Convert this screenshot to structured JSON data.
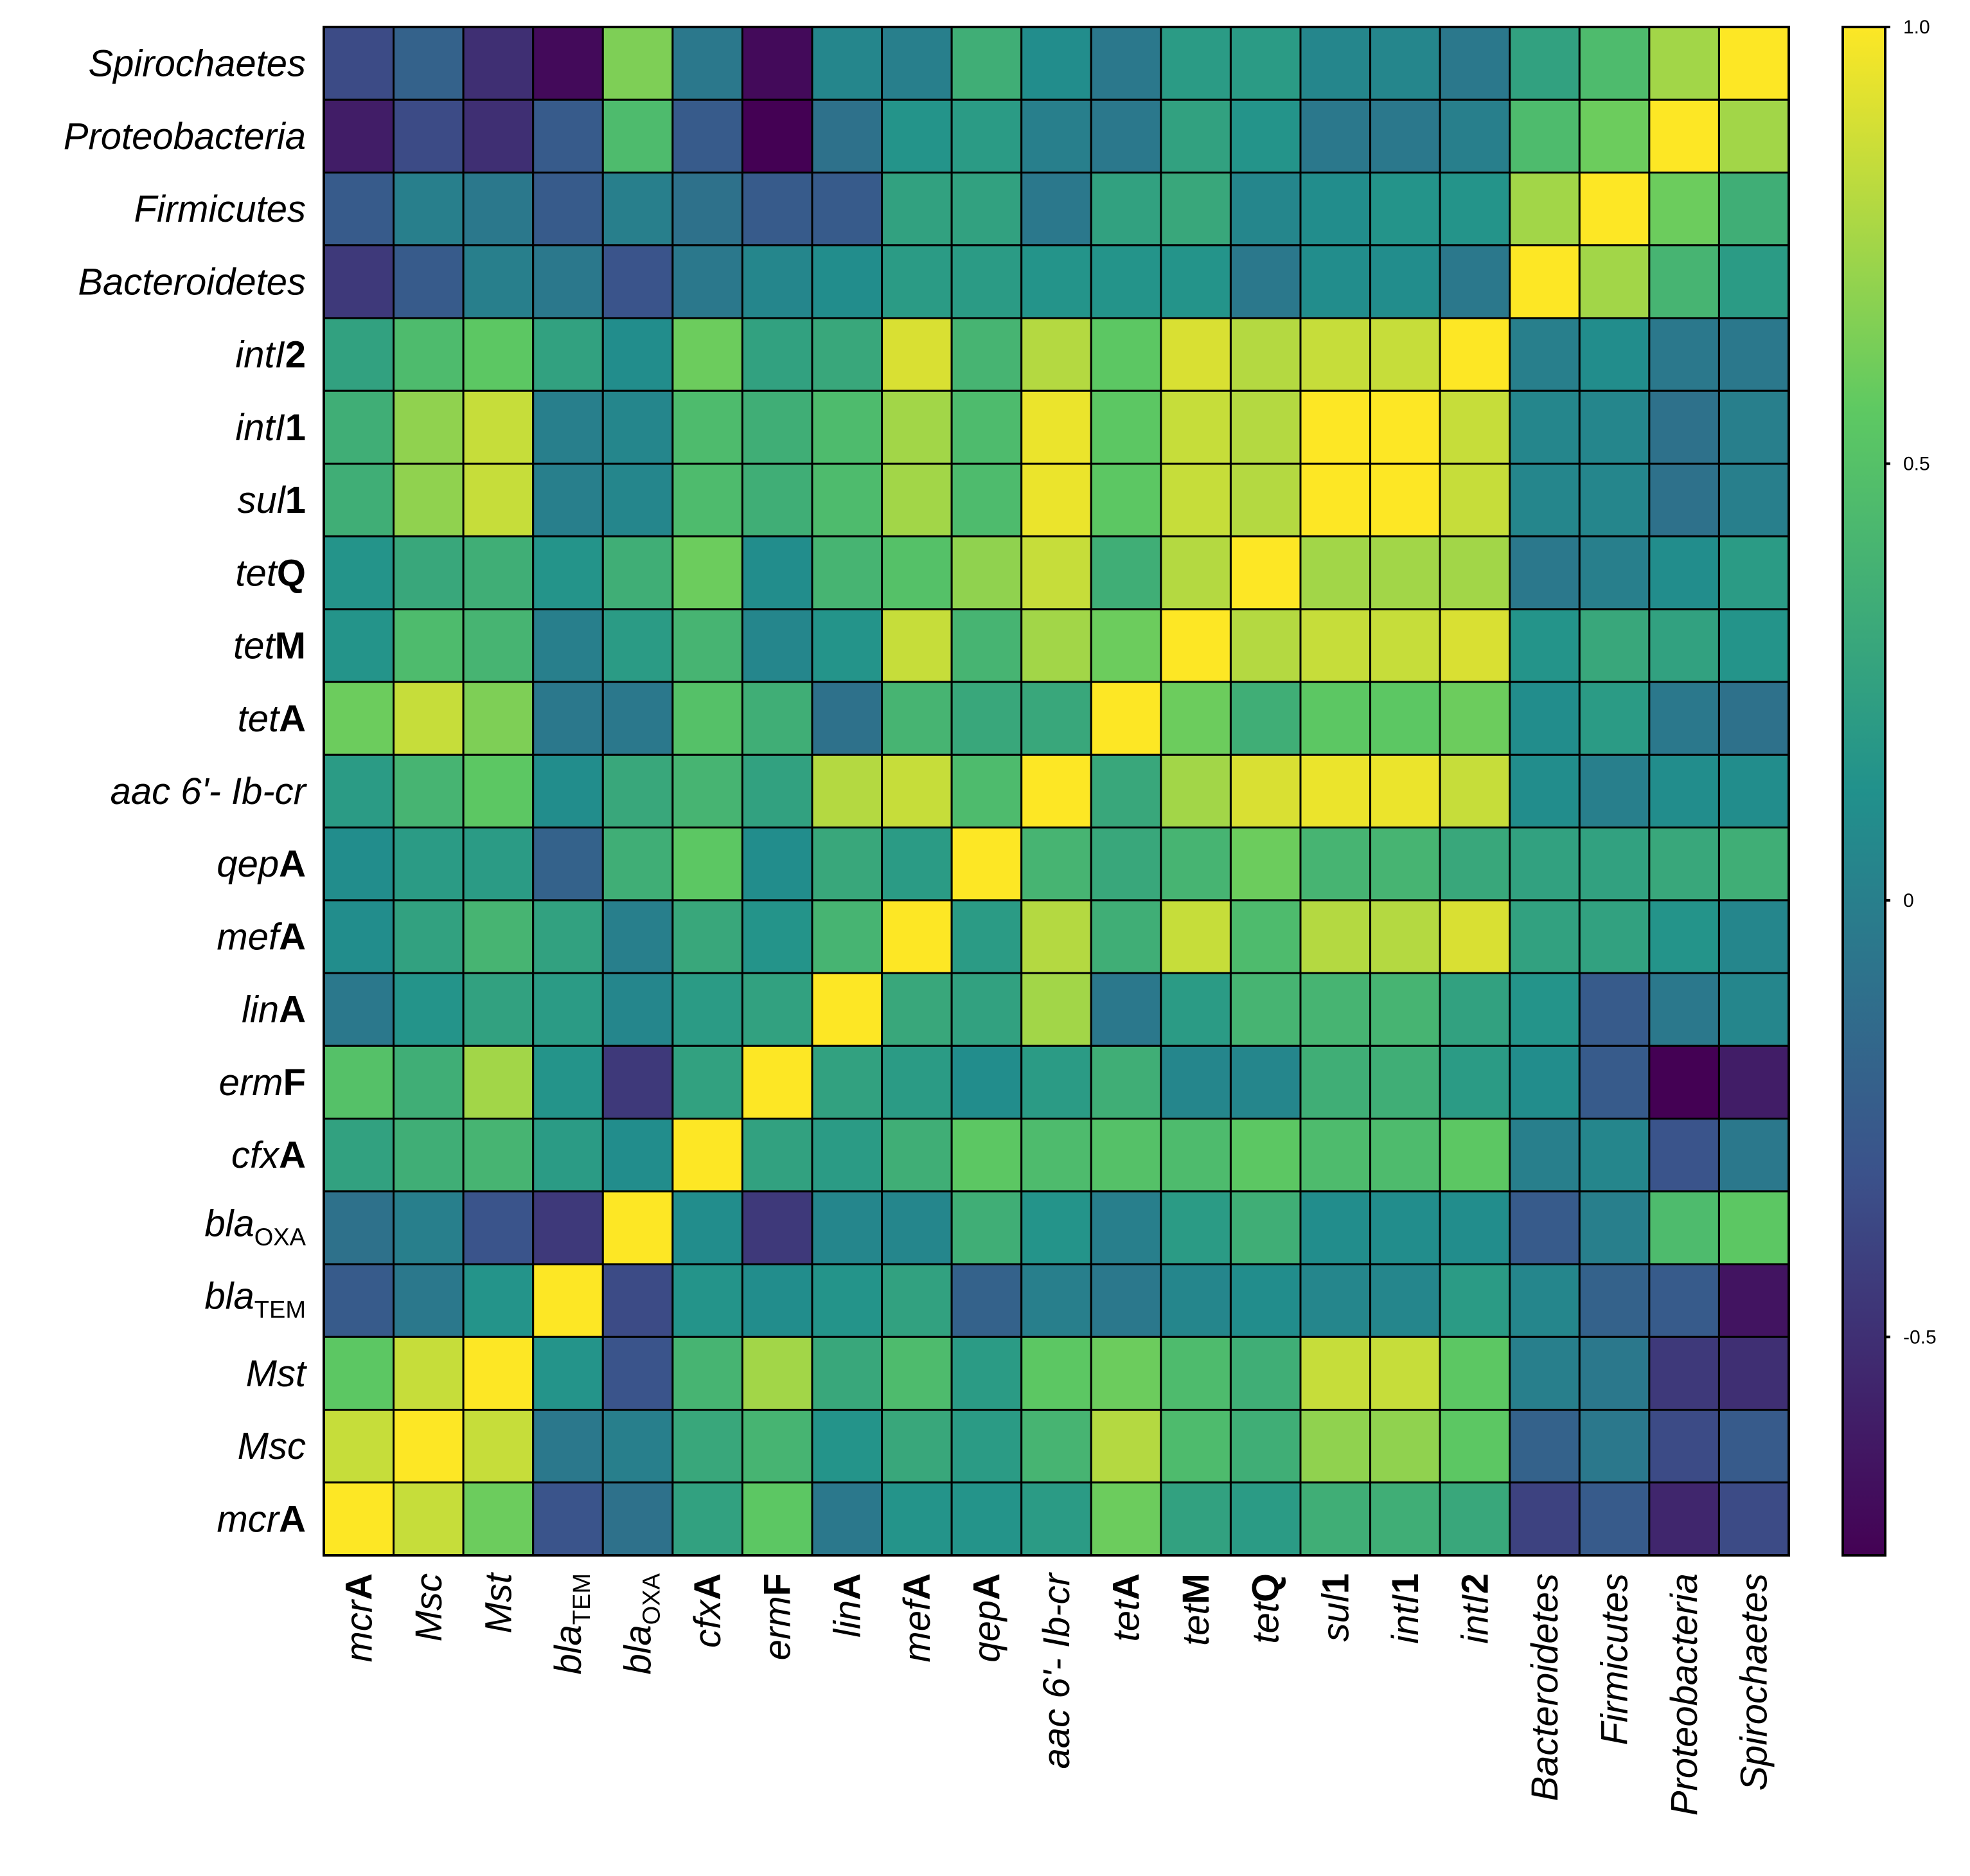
{
  "chart_data": {
    "type": "heatmap",
    "title": "",
    "colormap": [
      "#440154",
      "#3b528b",
      "#21918c",
      "#5ec962",
      "#fde725"
    ],
    "zlim": [
      -0.75,
      1.0
    ],
    "colorbar": {
      "ticks": [
        {
          "value": 1.0,
          "label": "1.0"
        },
        {
          "value": 0.5,
          "label": "0.5"
        },
        {
          "value": 0,
          "label": "0"
        },
        {
          "value": -0.5,
          "label": "-0.5"
        }
      ]
    },
    "columns": [
      {
        "id": "mcrA",
        "parts": [
          {
            "t": "mcr",
            "s": "it"
          },
          {
            "t": "A",
            "s": "bd"
          }
        ]
      },
      {
        "id": "Msc",
        "parts": [
          {
            "t": "Msc",
            "s": "it"
          }
        ]
      },
      {
        "id": "Mst",
        "parts": [
          {
            "t": "Mst",
            "s": "it"
          }
        ]
      },
      {
        "id": "blaTEM",
        "parts": [
          {
            "t": "bla",
            "s": "it"
          },
          {
            "t": "TEM",
            "s": "sub"
          }
        ]
      },
      {
        "id": "blaOXA",
        "parts": [
          {
            "t": "bla",
            "s": "it"
          },
          {
            "t": "OXA",
            "s": "sub"
          }
        ]
      },
      {
        "id": "cfxA",
        "parts": [
          {
            "t": "cfx",
            "s": "it"
          },
          {
            "t": "A",
            "s": "bd"
          }
        ]
      },
      {
        "id": "ermF",
        "parts": [
          {
            "t": "erm",
            "s": "it"
          },
          {
            "t": "F",
            "s": "bd"
          }
        ]
      },
      {
        "id": "linA",
        "parts": [
          {
            "t": "lin",
            "s": "it"
          },
          {
            "t": "A",
            "s": "bd"
          }
        ]
      },
      {
        "id": "mefA",
        "parts": [
          {
            "t": "mef",
            "s": "it"
          },
          {
            "t": "A",
            "s": "bd"
          }
        ]
      },
      {
        "id": "qepA",
        "parts": [
          {
            "t": "qep",
            "s": "it"
          },
          {
            "t": "A",
            "s": "bd"
          }
        ]
      },
      {
        "id": "aac6",
        "parts": [
          {
            "t": "aac 6'- Ib-cr",
            "s": "it"
          }
        ]
      },
      {
        "id": "tetA",
        "parts": [
          {
            "t": "tet",
            "s": "it"
          },
          {
            "t": "A",
            "s": "bd"
          }
        ]
      },
      {
        "id": "tetM",
        "parts": [
          {
            "t": "tet",
            "s": "it"
          },
          {
            "t": "M",
            "s": "bd"
          }
        ]
      },
      {
        "id": "tetQ",
        "parts": [
          {
            "t": "tet",
            "s": "it"
          },
          {
            "t": "Q",
            "s": "bd"
          }
        ]
      },
      {
        "id": "sul1",
        "parts": [
          {
            "t": "sul",
            "s": "it"
          },
          {
            "t": "1",
            "s": "bd"
          }
        ]
      },
      {
        "id": "intI1",
        "parts": [
          {
            "t": "intI",
            "s": "it"
          },
          {
            "t": "1",
            "s": "bd"
          }
        ]
      },
      {
        "id": "intI2",
        "parts": [
          {
            "t": "intI",
            "s": "it"
          },
          {
            "t": "2",
            "s": "bd"
          }
        ]
      },
      {
        "id": "Bacteroidetes",
        "parts": [
          {
            "t": "Bacteroidetes",
            "s": "it"
          }
        ]
      },
      {
        "id": "Firmicutes",
        "parts": [
          {
            "t": "Firmicutes",
            "s": "it"
          }
        ]
      },
      {
        "id": "Proteobacteria",
        "parts": [
          {
            "t": "Proteobacteria",
            "s": "it"
          }
        ]
      },
      {
        "id": "Spirochaetes",
        "parts": [
          {
            "t": "Spirochaetes",
            "s": "it"
          }
        ]
      }
    ],
    "rows_top_to_bottom": [
      {
        "id": "Spirochaetes",
        "parts": [
          {
            "t": "Spirochaetes",
            "s": "it"
          }
        ]
      },
      {
        "id": "Proteobacteria",
        "parts": [
          {
            "t": "Proteobacteria",
            "s": "it"
          }
        ]
      },
      {
        "id": "Firmicutes",
        "parts": [
          {
            "t": "Firmicutes",
            "s": "it"
          }
        ]
      },
      {
        "id": "Bacteroidetes",
        "parts": [
          {
            "t": "Bacteroidetes",
            "s": "it"
          }
        ]
      },
      {
        "id": "intI2",
        "parts": [
          {
            "t": "intI",
            "s": "it"
          },
          {
            "t": "2",
            "s": "bd"
          }
        ]
      },
      {
        "id": "intI1",
        "parts": [
          {
            "t": "intI",
            "s": "it"
          },
          {
            "t": "1",
            "s": "bd"
          }
        ]
      },
      {
        "id": "sul1",
        "parts": [
          {
            "t": "sul",
            "s": "it"
          },
          {
            "t": "1",
            "s": "bd"
          }
        ]
      },
      {
        "id": "tetQ",
        "parts": [
          {
            "t": "tet",
            "s": "it"
          },
          {
            "t": "Q",
            "s": "bd"
          }
        ]
      },
      {
        "id": "tetM",
        "parts": [
          {
            "t": "tet",
            "s": "it"
          },
          {
            "t": "M",
            "s": "bd"
          }
        ]
      },
      {
        "id": "tetA",
        "parts": [
          {
            "t": "tet",
            "s": "it"
          },
          {
            "t": "A",
            "s": "bd"
          }
        ]
      },
      {
        "id": "aac6",
        "parts": [
          {
            "t": "aac 6'- Ib-cr",
            "s": "it"
          }
        ]
      },
      {
        "id": "qepA",
        "parts": [
          {
            "t": "qep",
            "s": "it"
          },
          {
            "t": "A",
            "s": "bd"
          }
        ]
      },
      {
        "id": "mefA",
        "parts": [
          {
            "t": "mef",
            "s": "it"
          },
          {
            "t": "A",
            "s": "bd"
          }
        ]
      },
      {
        "id": "linA",
        "parts": [
          {
            "t": "lin",
            "s": "it"
          },
          {
            "t": "A",
            "s": "bd"
          }
        ]
      },
      {
        "id": "ermF",
        "parts": [
          {
            "t": "erm",
            "s": "it"
          },
          {
            "t": "F",
            "s": "bd"
          }
        ]
      },
      {
        "id": "cfxA",
        "parts": [
          {
            "t": "cfx",
            "s": "it"
          },
          {
            "t": "A",
            "s": "bd"
          }
        ]
      },
      {
        "id": "blaOXA",
        "parts": [
          {
            "t": "bla",
            "s": "it"
          },
          {
            "t": "OXA",
            "s": "sub"
          }
        ]
      },
      {
        "id": "blaTEM",
        "parts": [
          {
            "t": "bla",
            "s": "it"
          },
          {
            "t": "TEM",
            "s": "sub"
          }
        ]
      },
      {
        "id": "Mst",
        "parts": [
          {
            "t": "Mst",
            "s": "it"
          }
        ]
      },
      {
        "id": "Msc",
        "parts": [
          {
            "t": "Msc",
            "s": "it"
          }
        ]
      },
      {
        "id": "mcrA",
        "parts": [
          {
            "t": "mcr",
            "s": "it"
          },
          {
            "t": "A",
            "s": "bd"
          }
        ]
      }
    ],
    "values_top_to_bottom": [
      [
        -0.35,
        -0.2,
        -0.5,
        -0.7,
        0.65,
        -0.05,
        -0.7,
        0.05,
        0.0,
        0.35,
        0.1,
        -0.05,
        0.2,
        0.2,
        0.05,
        0.05,
        -0.05,
        0.25,
        0.45,
        0.75,
        1.0
      ],
      [
        -0.6,
        -0.35,
        -0.5,
        -0.25,
        0.45,
        -0.25,
        -0.75,
        -0.1,
        0.15,
        0.2,
        0.0,
        -0.05,
        0.25,
        0.15,
        -0.05,
        -0.05,
        0.0,
        0.45,
        0.6,
        1.0,
        0.75
      ],
      [
        -0.25,
        0.0,
        -0.05,
        -0.25,
        0.0,
        -0.1,
        -0.25,
        -0.25,
        0.25,
        0.25,
        -0.05,
        0.25,
        0.3,
        0.05,
        0.1,
        0.15,
        0.15,
        0.75,
        1.0,
        0.6,
        0.35
      ],
      [
        -0.45,
        -0.25,
        0.0,
        -0.05,
        -0.3,
        -0.05,
        0.05,
        0.1,
        0.2,
        0.2,
        0.15,
        0.15,
        0.15,
        -0.05,
        0.1,
        0.1,
        -0.05,
        1.0,
        0.75,
        0.4,
        0.2
      ],
      [
        0.25,
        0.45,
        0.55,
        0.25,
        0.1,
        0.6,
        0.25,
        0.3,
        0.9,
        0.4,
        0.8,
        0.55,
        0.9,
        0.8,
        0.85,
        0.85,
        1.0,
        0.0,
        0.1,
        -0.05,
        -0.05
      ],
      [
        0.35,
        0.7,
        0.85,
        0.0,
        0.05,
        0.45,
        0.35,
        0.45,
        0.75,
        0.45,
        0.95,
        0.55,
        0.85,
        0.8,
        1.0,
        1.0,
        0.85,
        0.05,
        0.05,
        -0.1,
        0.0
      ],
      [
        0.35,
        0.7,
        0.85,
        0.0,
        0.05,
        0.45,
        0.35,
        0.45,
        0.75,
        0.45,
        0.95,
        0.55,
        0.85,
        0.8,
        1.0,
        1.0,
        0.85,
        0.05,
        0.05,
        -0.1,
        0.0
      ],
      [
        0.15,
        0.3,
        0.35,
        0.15,
        0.35,
        0.6,
        0.1,
        0.4,
        0.5,
        0.7,
        0.85,
        0.35,
        0.8,
        1.0,
        0.75,
        0.75,
        0.75,
        -0.05,
        0.0,
        0.1,
        0.2
      ],
      [
        0.15,
        0.45,
        0.4,
        0.0,
        0.2,
        0.4,
        0.05,
        0.15,
        0.85,
        0.4,
        0.75,
        0.6,
        1.0,
        0.8,
        0.85,
        0.85,
        0.9,
        0.15,
        0.3,
        0.25,
        0.15
      ],
      [
        0.6,
        0.85,
        0.65,
        -0.05,
        -0.05,
        0.5,
        0.35,
        -0.1,
        0.4,
        0.3,
        0.3,
        1.0,
        0.6,
        0.35,
        0.55,
        0.55,
        0.6,
        0.1,
        0.2,
        -0.05,
        -0.1
      ],
      [
        0.2,
        0.4,
        0.55,
        0.1,
        0.3,
        0.4,
        0.25,
        0.8,
        0.85,
        0.45,
        1.0,
        0.3,
        0.75,
        0.9,
        0.95,
        0.95,
        0.85,
        0.1,
        0.0,
        0.1,
        0.1
      ],
      [
        0.1,
        0.2,
        0.2,
        -0.2,
        0.35,
        0.55,
        0.1,
        0.3,
        0.2,
        1.0,
        0.4,
        0.3,
        0.4,
        0.6,
        0.4,
        0.4,
        0.3,
        0.25,
        0.25,
        0.3,
        0.35
      ],
      [
        0.1,
        0.25,
        0.4,
        0.25,
        0.0,
        0.3,
        0.15,
        0.4,
        1.0,
        0.2,
        0.8,
        0.35,
        0.85,
        0.45,
        0.8,
        0.8,
        0.9,
        0.25,
        0.25,
        0.15,
        0.05
      ],
      [
        -0.05,
        0.15,
        0.25,
        0.2,
        0.05,
        0.2,
        0.25,
        1.0,
        0.3,
        0.25,
        0.75,
        -0.05,
        0.2,
        0.4,
        0.4,
        0.4,
        0.25,
        0.15,
        -0.25,
        -0.05,
        0.05
      ],
      [
        0.5,
        0.35,
        0.75,
        0.15,
        -0.45,
        0.25,
        1.0,
        0.25,
        0.2,
        0.1,
        0.2,
        0.35,
        0.05,
        0.05,
        0.35,
        0.35,
        0.2,
        0.1,
        -0.25,
        -0.75,
        -0.6
      ],
      [
        0.25,
        0.35,
        0.4,
        0.2,
        0.1,
        1.0,
        0.25,
        0.2,
        0.35,
        0.55,
        0.45,
        0.5,
        0.45,
        0.55,
        0.45,
        0.45,
        0.55,
        0.0,
        0.05,
        -0.3,
        -0.05
      ],
      [
        -0.1,
        0.0,
        -0.3,
        -0.45,
        1.0,
        0.1,
        -0.45,
        0.05,
        0.05,
        0.35,
        0.15,
        0.0,
        0.2,
        0.35,
        0.1,
        0.1,
        0.1,
        -0.25,
        0.0,
        0.45,
        0.55
      ],
      [
        -0.25,
        -0.05,
        0.15,
        1.0,
        -0.35,
        0.15,
        0.1,
        0.15,
        0.25,
        -0.2,
        0.0,
        -0.05,
        0.05,
        0.1,
        0.05,
        0.05,
        0.2,
        0.05,
        -0.2,
        -0.25,
        -0.65
      ],
      [
        0.55,
        0.85,
        1.0,
        0.15,
        -0.3,
        0.4,
        0.75,
        0.3,
        0.45,
        0.2,
        0.55,
        0.6,
        0.45,
        0.35,
        0.85,
        0.85,
        0.55,
        0.0,
        -0.05,
        -0.45,
        -0.5
      ],
      [
        0.85,
        1.0,
        0.85,
        -0.05,
        0.0,
        0.3,
        0.4,
        0.15,
        0.3,
        0.2,
        0.4,
        0.8,
        0.45,
        0.35,
        0.7,
        0.7,
        0.55,
        -0.2,
        -0.05,
        -0.35,
        -0.25
      ],
      [
        1.0,
        0.85,
        0.6,
        -0.3,
        -0.1,
        0.25,
        0.55,
        -0.05,
        0.15,
        0.15,
        0.2,
        0.6,
        0.25,
        0.2,
        0.35,
        0.35,
        0.3,
        -0.4,
        -0.25,
        -0.55,
        -0.35
      ]
    ]
  }
}
